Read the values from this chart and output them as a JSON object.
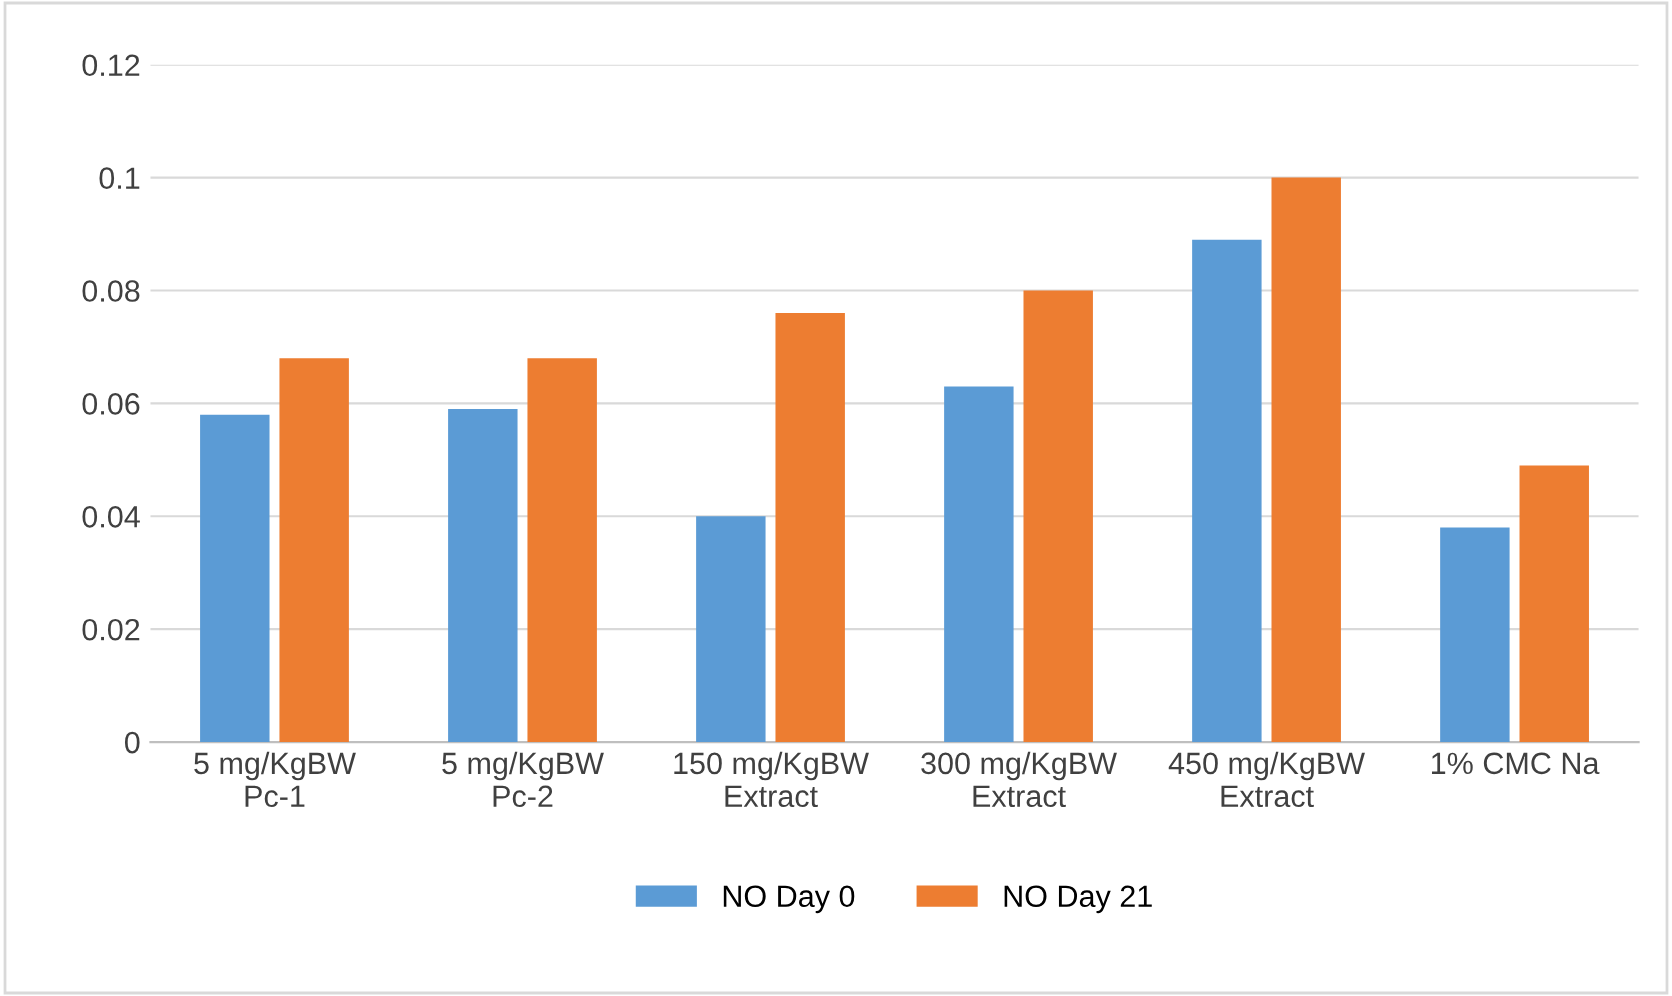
{
  "chart_data": {
    "type": "bar",
    "categories": [
      "5 mg/KgBW\nPc-1",
      "5 mg/KgBW\nPc-2",
      "150 mg/KgBW\nExtract",
      "300 mg/KgBW\nExtract",
      "450 mg/KgBW\nExtract",
      "1% CMC Na"
    ],
    "series": [
      {
        "name": "NO Day 0",
        "color": "#5b9bd5",
        "values": [
          0.058,
          0.059,
          0.04,
          0.063,
          0.089,
          0.038
        ]
      },
      {
        "name": "NO Day 21",
        "color": "#ed7d31",
        "values": [
          0.068,
          0.068,
          0.076,
          0.08,
          0.1,
          0.049
        ]
      }
    ],
    "ylim": [
      0,
      0.12
    ],
    "yticks": [
      0,
      0.02,
      0.04,
      0.06,
      0.08,
      0.1,
      0.12
    ],
    "grid": "y",
    "legend": "bottom"
  }
}
